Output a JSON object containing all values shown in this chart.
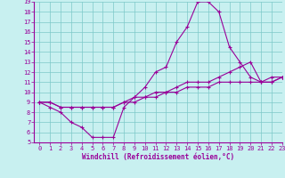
{
  "xlabel": "Windchill (Refroidissement éolien,°C)",
  "bg_color": "#c8f0f0",
  "line_color": "#990099",
  "grid_color": "#7dc8c8",
  "curve1_x": [
    0,
    1,
    2,
    3,
    4,
    5,
    6,
    7,
    8,
    9,
    10,
    11,
    12,
    13,
    14,
    15,
    16,
    17,
    18,
    19,
    20,
    21,
    22,
    23
  ],
  "curve1_y": [
    9,
    8.5,
    8,
    7,
    6.5,
    5.5,
    5.5,
    5.5,
    8.5,
    9.5,
    10.5,
    12,
    12.5,
    15,
    16.5,
    19,
    19,
    18,
    14.5,
    13,
    11.5,
    11,
    11,
    11.5
  ],
  "curve2_x": [
    0,
    1,
    2,
    3,
    4,
    5,
    6,
    7,
    8,
    9,
    10,
    11,
    12,
    13,
    14,
    15,
    16,
    17,
    18,
    19,
    20,
    21,
    22,
    23
  ],
  "curve2_y": [
    9,
    9,
    8.5,
    8.5,
    8.5,
    8.5,
    8.5,
    8.5,
    9,
    9.5,
    9.5,
    10,
    10,
    10.5,
    11,
    11,
    11,
    11.5,
    12,
    12.5,
    13,
    11,
    11,
    11.5
  ],
  "curve3_x": [
    0,
    1,
    2,
    3,
    4,
    5,
    6,
    7,
    8,
    9,
    10,
    11,
    12,
    13,
    14,
    15,
    16,
    17,
    18,
    19,
    20,
    21,
    22,
    23
  ],
  "curve3_y": [
    9,
    9,
    8.5,
    8.5,
    8.5,
    8.5,
    8.5,
    8.5,
    9,
    9,
    9.5,
    9.5,
    10,
    10,
    10.5,
    10.5,
    10.5,
    11,
    11,
    11,
    11,
    11,
    11.5,
    11.5
  ],
  "xlim": [
    -0.5,
    23
  ],
  "ylim": [
    5,
    19
  ],
  "xticks": [
    0,
    1,
    2,
    3,
    4,
    5,
    6,
    7,
    8,
    9,
    10,
    11,
    12,
    13,
    14,
    15,
    16,
    17,
    18,
    19,
    20,
    21,
    22,
    23
  ],
  "yticks": [
    5,
    6,
    7,
    8,
    9,
    10,
    11,
    12,
    13,
    14,
    15,
    16,
    17,
    18,
    19
  ]
}
